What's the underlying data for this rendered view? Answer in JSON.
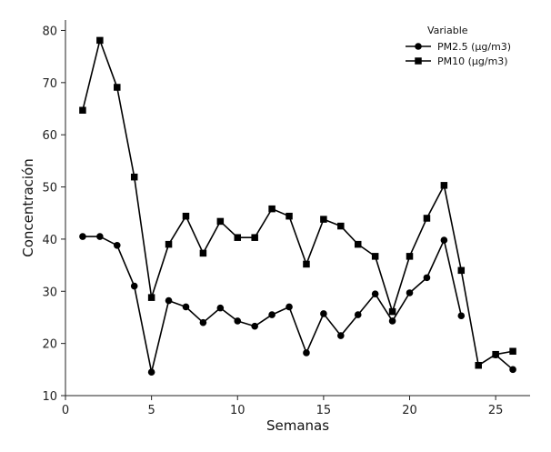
{
  "chart_data": {
    "type": "line",
    "xlabel": "Semanas",
    "ylabel": "Concentración",
    "xlim": [
      0,
      27
    ],
    "ylim": [
      10,
      82
    ],
    "x_ticks": [
      0,
      5,
      10,
      15,
      20,
      25
    ],
    "y_ticks": [
      10,
      20,
      30,
      40,
      50,
      60,
      70,
      80
    ],
    "grid": false,
    "legend": {
      "title": "Variable",
      "placement": "top-right"
    },
    "x": [
      1,
      2,
      3,
      4,
      5,
      6,
      7,
      8,
      9,
      10,
      11,
      12,
      13,
      14,
      15,
      16,
      17,
      18,
      19,
      20,
      21,
      22,
      23,
      24,
      25,
      26
    ],
    "series": [
      {
        "name": "PM2.5 (µg/m3)",
        "marker": "circle",
        "color": "#000000",
        "values": [
          40.5,
          40.5,
          38.8,
          31.0,
          14.5,
          28.2,
          27.0,
          24.0,
          26.8,
          24.3,
          23.3,
          25.5,
          27.0,
          18.2,
          25.7,
          21.5,
          25.5,
          29.5,
          24.3,
          29.7,
          32.6,
          39.8,
          25.3,
          null,
          17.8,
          15.0
        ]
      },
      {
        "name": "PM10 (µg/m3)",
        "marker": "square",
        "color": "#000000",
        "values": [
          64.7,
          78.1,
          69.1,
          51.9,
          28.8,
          39.0,
          44.4,
          37.3,
          43.4,
          40.3,
          40.3,
          45.8,
          44.4,
          35.2,
          43.8,
          42.5,
          39.0,
          36.7,
          26.1,
          36.7,
          44.0,
          50.3,
          34.0,
          15.8,
          17.9,
          18.5
        ]
      }
    ]
  }
}
